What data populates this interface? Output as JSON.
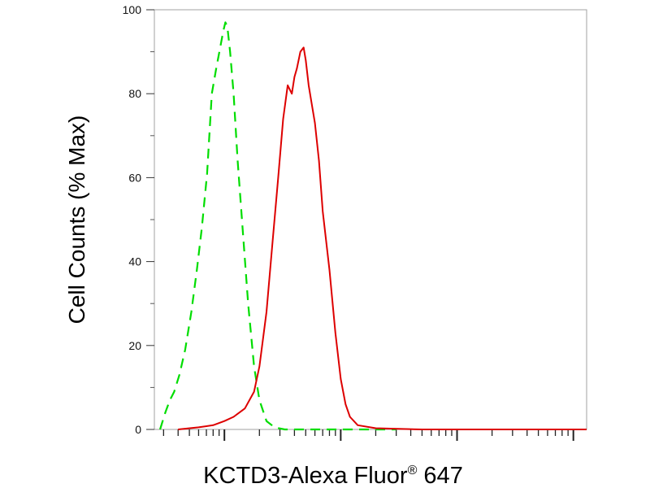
{
  "chart_data": {
    "type": "line",
    "title": "",
    "xlabel_main": "KCTD3-Alexa Fluor",
    "xlabel_reg": "®",
    "xlabel_suffix": " 647",
    "ylabel": "Cell Counts (% Max)",
    "x_scale": "log",
    "xlim": [
      0.25,
      1300
    ],
    "ylim": [
      0,
      100
    ],
    "y_ticks": [
      0,
      20,
      40,
      60,
      80,
      100
    ],
    "y_tick_labels": [
      "0",
      "20",
      "40",
      "60",
      "80",
      "100"
    ],
    "x_tick_labels": [],
    "grid": false,
    "legend": "none",
    "series": [
      {
        "color": "#00dd00",
        "style": "dashed",
        "x": [
          0.28,
          0.31,
          0.34,
          0.37,
          0.41,
          0.46,
          0.52,
          0.58,
          0.64,
          0.71,
          0.78,
          0.85,
          0.92,
          0.98,
          1.02,
          1.06,
          1.12,
          1.2,
          1.3,
          1.45,
          1.6,
          1.8,
          2.0,
          2.3,
          2.7,
          3.3,
          4.5,
          7,
          12,
          30
        ],
        "y": [
          0,
          4,
          7,
          9,
          13,
          19,
          28,
          38,
          48,
          61,
          80,
          86,
          91,
          95,
          97,
          96,
          90,
          80,
          64,
          46,
          30,
          15,
          7,
          2,
          0.5,
          0,
          0,
          0,
          0,
          0
        ]
      },
      {
        "color": "#dd0000",
        "style": "solid",
        "x": [
          0.4,
          0.6,
          0.8,
          1.0,
          1.2,
          1.5,
          1.8,
          2.0,
          2.3,
          2.6,
          2.9,
          3.2,
          3.5,
          3.8,
          4.0,
          4.2,
          4.5,
          4.8,
          5.0,
          5.3,
          5.6,
          6.0,
          6.5,
          7,
          8,
          9,
          10,
          11,
          12,
          14,
          20,
          50,
          200,
          1300
        ],
        "y": [
          0,
          0.5,
          1,
          2,
          3,
          5,
          9,
          15,
          28,
          45,
          60,
          74,
          82,
          80,
          84,
          86,
          90,
          91,
          88,
          82,
          78,
          73,
          64,
          52,
          38,
          23,
          12,
          6,
          3,
          1,
          0.3,
          0,
          0,
          0
        ]
      }
    ]
  }
}
